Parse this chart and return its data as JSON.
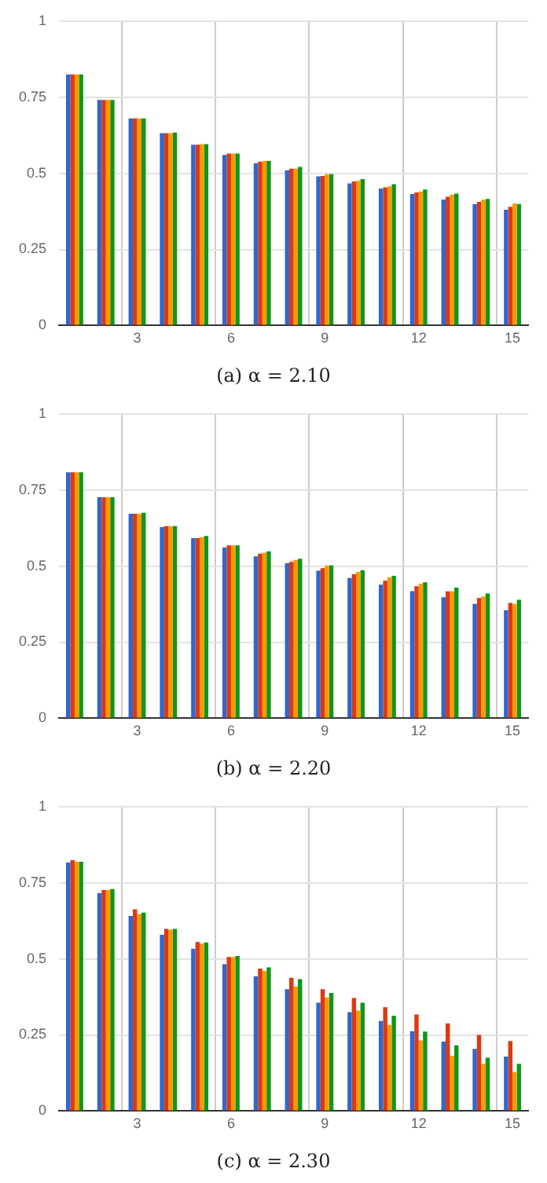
{
  "chart_data": [
    {
      "type": "bar",
      "title": "(a) α = 2.10",
      "categories": [
        null,
        null,
        "3",
        null,
        null,
        "6",
        null,
        null,
        "9",
        null,
        null,
        "12",
        null,
        null,
        "15"
      ],
      "series": [
        {
          "color": "#3366cc",
          "values": [
            0.825,
            0.741,
            0.68,
            0.632,
            0.594,
            0.56,
            0.533,
            0.51,
            0.49,
            0.467,
            0.45,
            0.432,
            0.414,
            0.399,
            0.38
          ]
        },
        {
          "color": "#dc3912",
          "values": [
            0.825,
            0.741,
            0.68,
            0.632,
            0.594,
            0.565,
            0.538,
            0.515,
            0.491,
            0.473,
            0.454,
            0.437,
            0.423,
            0.406,
            0.39
          ]
        },
        {
          "color": "#ff9900",
          "values": [
            0.825,
            0.741,
            0.68,
            0.632,
            0.596,
            0.565,
            0.541,
            0.515,
            0.497,
            0.476,
            0.457,
            0.44,
            0.43,
            0.413,
            0.401
          ]
        },
        {
          "color": "#109618",
          "values": [
            0.825,
            0.741,
            0.68,
            0.634,
            0.596,
            0.565,
            0.541,
            0.521,
            0.497,
            0.481,
            0.464,
            0.447,
            0.433,
            0.416,
            0.399
          ]
        }
      ],
      "ylim": [
        0,
        1
      ],
      "yticks": [
        0,
        0.25,
        0.5,
        0.75,
        1
      ],
      "grid": true
    },
    {
      "type": "bar",
      "title": "(b) α = 2.20",
      "categories": [
        null,
        null,
        "3",
        null,
        null,
        "6",
        null,
        null,
        "9",
        null,
        null,
        "12",
        null,
        null,
        "15"
      ],
      "series": [
        {
          "color": "#3366cc",
          "values": [
            0.808,
            0.726,
            0.672,
            0.628,
            0.592,
            0.561,
            0.532,
            0.509,
            0.485,
            0.461,
            0.439,
            0.418,
            0.398,
            0.376,
            0.355
          ]
        },
        {
          "color": "#dc3912",
          "values": [
            0.808,
            0.726,
            0.672,
            0.631,
            0.592,
            0.568,
            0.541,
            0.514,
            0.493,
            0.473,
            0.452,
            0.434,
            0.417,
            0.395,
            0.379
          ]
        },
        {
          "color": "#ff9900",
          "values": [
            0.808,
            0.726,
            0.672,
            0.631,
            0.595,
            0.568,
            0.544,
            0.52,
            0.502,
            0.481,
            0.463,
            0.442,
            0.417,
            0.4,
            0.376
          ]
        },
        {
          "color": "#109618",
          "values": [
            0.808,
            0.726,
            0.675,
            0.631,
            0.599,
            0.568,
            0.548,
            0.524,
            0.502,
            0.486,
            0.468,
            0.447,
            0.429,
            0.41,
            0.389
          ]
        }
      ],
      "ylim": [
        0,
        1
      ],
      "yticks": [
        0,
        0.25,
        0.5,
        0.75,
        1
      ],
      "grid": true
    },
    {
      "type": "bar",
      "title": "(c) α = 2.30",
      "categories": [
        null,
        null,
        "3",
        null,
        null,
        "6",
        null,
        null,
        "9",
        null,
        null,
        "12",
        null,
        null,
        "15"
      ],
      "series": [
        {
          "color": "#3366cc",
          "values": [
            0.816,
            0.716,
            0.641,
            0.579,
            0.533,
            0.482,
            0.443,
            0.4,
            0.356,
            0.325,
            0.296,
            0.262,
            0.228,
            0.204,
            0.179
          ]
        },
        {
          "color": "#dc3912",
          "values": [
            0.824,
            0.726,
            0.663,
            0.598,
            0.555,
            0.506,
            0.468,
            0.438,
            0.4,
            0.371,
            0.341,
            0.317,
            0.288,
            0.25,
            0.23
          ]
        },
        {
          "color": "#ff9900",
          "values": [
            0.819,
            0.726,
            0.647,
            0.596,
            0.55,
            0.506,
            0.46,
            0.409,
            0.373,
            0.33,
            0.283,
            0.232,
            0.181,
            0.155,
            0.128
          ]
        },
        {
          "color": "#109618",
          "values": [
            0.819,
            0.729,
            0.652,
            0.598,
            0.554,
            0.509,
            0.472,
            0.433,
            0.388,
            0.356,
            0.313,
            0.261,
            0.216,
            0.175,
            0.155
          ]
        }
      ],
      "ylim": [
        0,
        1
      ],
      "yticks": [
        0,
        0.25,
        0.5,
        0.75,
        1
      ],
      "grid": true
    }
  ]
}
